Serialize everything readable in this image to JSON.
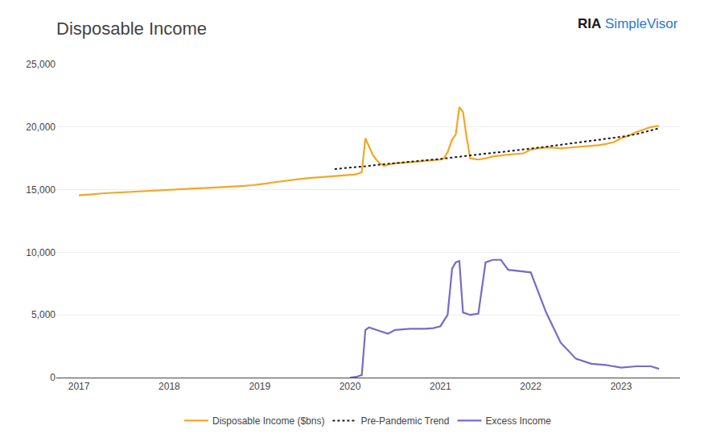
{
  "chart_data": {
    "type": "line",
    "title": "Disposable Income",
    "annotations": [
      {
        "text": "RIA",
        "color": "#1a1a1a"
      },
      {
        "text": "SimpleVisor",
        "color": "#2979cc"
      }
    ],
    "xlim": [
      2016.75,
      2023.65
    ],
    "xticks": [
      2017,
      2018,
      2019,
      2020,
      2021,
      2022,
      2023
    ],
    "ylim": [
      0,
      25000
    ],
    "yticks": [
      0,
      {
        "value": 5000,
        "label": "5,000"
      },
      {
        "value": 10000,
        "label": "10,000"
      },
      {
        "value": 15000,
        "label": "15,000"
      },
      {
        "value": 20000,
        "label": "20,000"
      },
      {
        "value": 25000,
        "label": "25,000"
      }
    ],
    "grid": "y",
    "legend": "bottom",
    "series": [
      {
        "name": "Disposable Income ($bns)",
        "color": "#f5a623",
        "line_style": "solid",
        "x": [
          2017.0,
          2017.08,
          2017.17,
          2017.25,
          2017.33,
          2017.42,
          2017.5,
          2017.58,
          2017.67,
          2017.75,
          2017.83,
          2017.92,
          2018.0,
          2018.08,
          2018.17,
          2018.25,
          2018.33,
          2018.42,
          2018.5,
          2018.58,
          2018.67,
          2018.75,
          2018.83,
          2018.92,
          2019.0,
          2019.08,
          2019.17,
          2019.25,
          2019.33,
          2019.42,
          2019.5,
          2019.58,
          2019.67,
          2019.75,
          2019.83,
          2019.92,
          2020.0,
          2020.04,
          2020.08,
          2020.13,
          2020.17,
          2020.21,
          2020.25,
          2020.29,
          2020.33,
          2020.38,
          2020.42,
          2020.5,
          2020.58,
          2020.67,
          2020.75,
          2020.83,
          2020.92,
          2021.0,
          2021.04,
          2021.08,
          2021.13,
          2021.17,
          2021.21,
          2021.25,
          2021.29,
          2021.33,
          2021.42,
          2021.5,
          2021.58,
          2021.67,
          2021.75,
          2021.83,
          2021.92,
          2022.0,
          2022.08,
          2022.17,
          2022.25,
          2022.33,
          2022.42,
          2022.5,
          2022.58,
          2022.67,
          2022.75,
          2022.83,
          2022.92,
          2023.0,
          2023.08,
          2023.17,
          2023.25,
          2023.33,
          2023.42
        ],
        "values": [
          14550,
          14580,
          14650,
          14700,
          14730,
          14760,
          14800,
          14840,
          14870,
          14900,
          14920,
          14950,
          14980,
          15010,
          15050,
          15080,
          15100,
          15130,
          15150,
          15200,
          15240,
          15270,
          15300,
          15360,
          15420,
          15500,
          15600,
          15680,
          15750,
          15830,
          15900,
          15950,
          16000,
          16030,
          16060,
          16100,
          16150,
          16200,
          16250,
          16400,
          19100,
          18400,
          17800,
          17400,
          17100,
          16900,
          17000,
          17100,
          17150,
          17200,
          17250,
          17300,
          17350,
          17400,
          17500,
          18000,
          19000,
          19400,
          21600,
          21200,
          19200,
          17500,
          17400,
          17500,
          17650,
          17750,
          17800,
          17850,
          17900,
          18200,
          18300,
          18350,
          18350,
          18300,
          18350,
          18400,
          18450,
          18500,
          18550,
          18650,
          18800,
          19100,
          19300,
          19600,
          19800,
          20000,
          20100
        ]
      },
      {
        "name": "Pre-Pandemic Trend",
        "color": "#1a1a1a",
        "line_style": "dotted",
        "x": [
          2019.83,
          2020.0,
          2020.17,
          2020.33,
          2020.5,
          2020.67,
          2020.83,
          2021.0,
          2021.17,
          2021.33,
          2021.5,
          2021.67,
          2021.83,
          2022.0,
          2022.17,
          2022.33,
          2022.5,
          2022.67,
          2022.83,
          2023.0,
          2023.17,
          2023.33,
          2023.42
        ],
        "values": [
          16650,
          16750,
          16870,
          17000,
          17100,
          17220,
          17340,
          17450,
          17600,
          17750,
          17880,
          18000,
          18120,
          18280,
          18430,
          18580,
          18730,
          18900,
          19050,
          19220,
          19430,
          19700,
          19900
        ]
      },
      {
        "name": "Excess Income",
        "color": "#7b68c8",
        "line_style": "solid",
        "x": [
          2020.0,
          2020.04,
          2020.08,
          2020.13,
          2020.17,
          2020.21,
          2020.25,
          2020.33,
          2020.42,
          2020.5,
          2020.58,
          2020.67,
          2020.75,
          2020.83,
          2020.92,
          2021.0,
          2021.08,
          2021.13,
          2021.17,
          2021.21,
          2021.25,
          2021.33,
          2021.42,
          2021.5,
          2021.58,
          2021.67,
          2021.75,
          2022.0,
          2022.17,
          2022.33,
          2022.5,
          2022.67,
          2022.83,
          2023.0,
          2023.17,
          2023.33,
          2023.42
        ],
        "values": [
          0,
          30,
          80,
          200,
          3800,
          4000,
          3900,
          3700,
          3500,
          3800,
          3850,
          3900,
          3900,
          3900,
          3950,
          4100,
          5000,
          8700,
          9200,
          9300,
          5200,
          5000,
          5100,
          9200,
          9400,
          9400,
          8600,
          8400,
          5200,
          2800,
          1500,
          1100,
          1000,
          800,
          900,
          900,
          700
        ]
      }
    ]
  }
}
